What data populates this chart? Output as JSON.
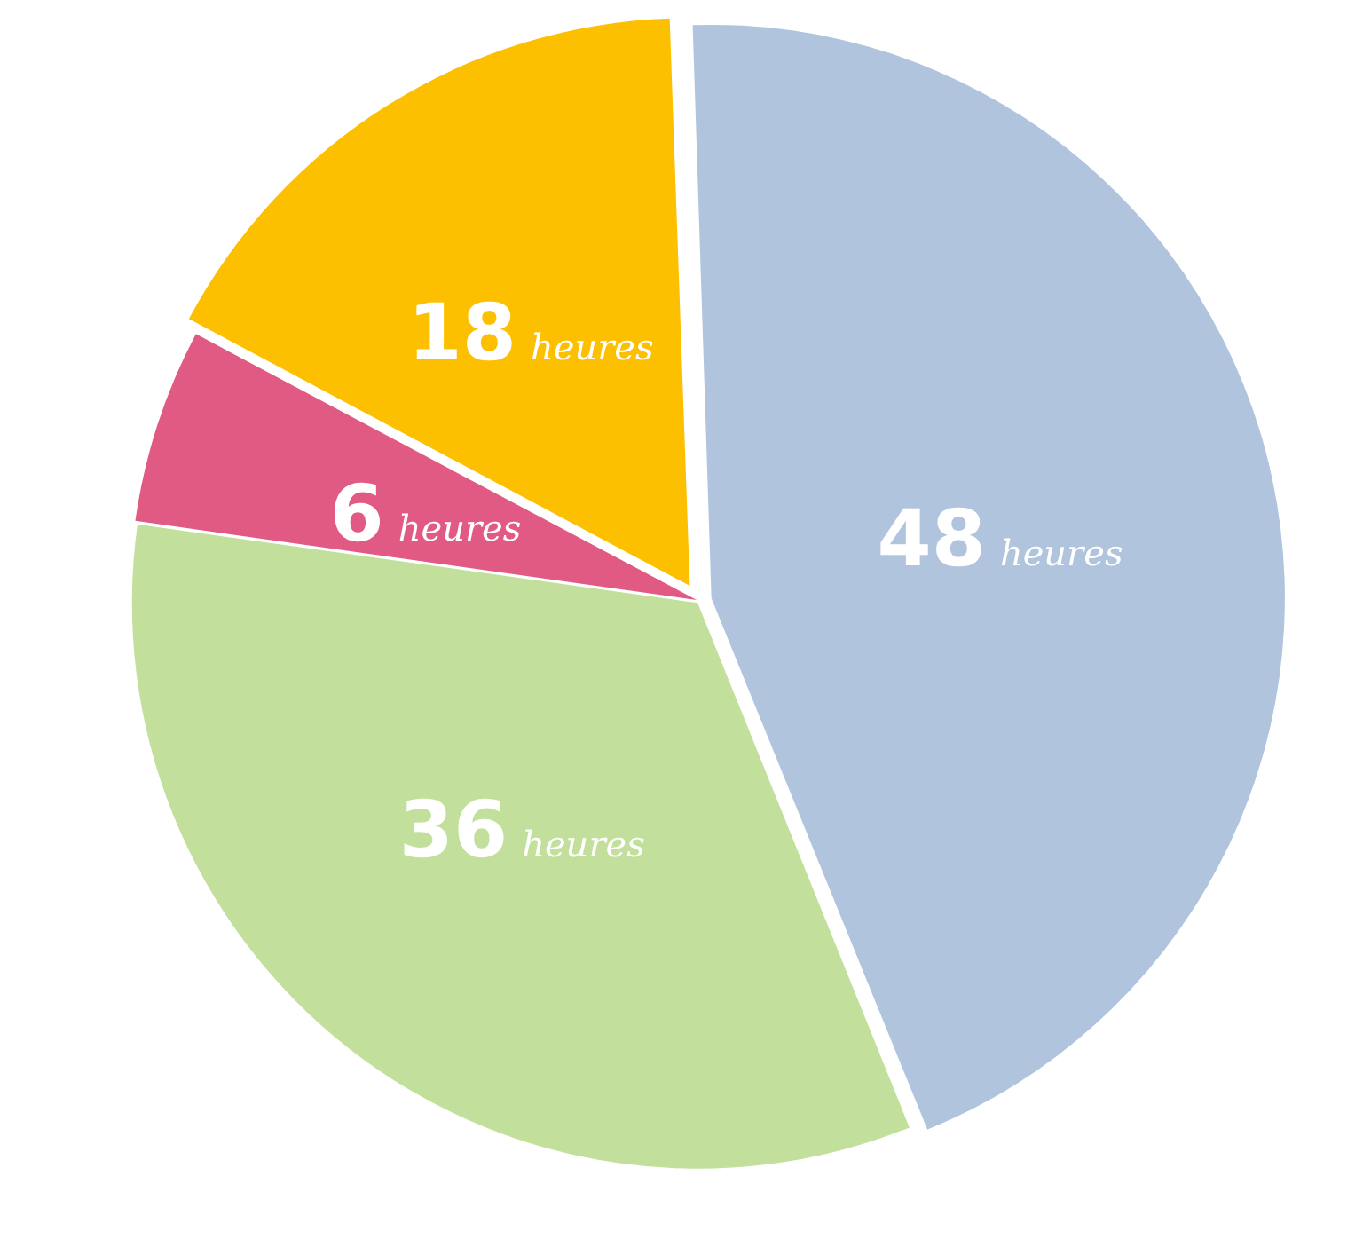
{
  "chart_data": {
    "type": "pie",
    "categories": [
      null,
      null,
      null,
      null
    ],
    "values": [
      48,
      36,
      6,
      18
    ],
    "colors": [
      "#b0c4de",
      "#c2e09c",
      "#e05a84",
      "#fdc001"
    ],
    "value_labels": [
      "48 heures",
      "36 heures",
      "6 heures",
      "18 heures"
    ],
    "legend": false
  }
}
